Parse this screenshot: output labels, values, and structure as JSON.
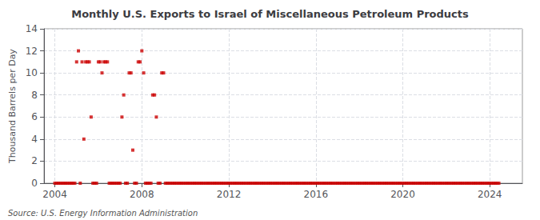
{
  "chart_data": {
    "type": "scatter",
    "title": "Monthly U.S. Exports to Israel of Miscellaneous Petroleum Products",
    "ylabel": "Thousand Barrels per Day",
    "annotations": [
      "Source: U.S. Energy Information Administration"
    ],
    "color": "#cc0000",
    "marker": "square",
    "grid": true,
    "xlim": [
      2003.5,
      2025.5
    ],
    "ylim": [
      0,
      14
    ],
    "xticks": [
      2004,
      2008,
      2012,
      2016,
      2020,
      2024
    ],
    "yticks": [
      0,
      2,
      4,
      6,
      8,
      10,
      12,
      14
    ],
    "x": [
      2004.0,
      2004.083,
      2004.167,
      2004.25,
      2004.333,
      2004.417,
      2004.5,
      2004.583,
      2004.667,
      2004.75,
      2004.833,
      2004.917,
      2005.0,
      2005.083,
      2005.167,
      2005.25,
      2005.333,
      2005.417,
      2005.5,
      2005.583,
      2005.667,
      2005.75,
      2005.833,
      2005.917,
      2006.0,
      2006.083,
      2006.167,
      2006.25,
      2006.333,
      2006.417,
      2006.5,
      2006.583,
      2006.667,
      2006.75,
      2006.833,
      2006.917,
      2007.0,
      2007.083,
      2007.167,
      2007.25,
      2007.333,
      2007.417,
      2007.5,
      2007.583,
      2007.667,
      2007.75,
      2007.833,
      2007.917,
      2008.0,
      2008.083,
      2008.167,
      2008.25,
      2008.333,
      2008.417,
      2008.5,
      2008.583,
      2008.667,
      2008.75,
      2008.833,
      2008.917,
      2009.0,
      2009.083,
      2009.167,
      2009.25,
      2009.333,
      2009.417,
      2009.5,
      2009.583,
      2009.667,
      2009.75,
      2009.833,
      2009.917,
      2010.0,
      2010.083,
      2010.167,
      2010.25,
      2010.333,
      2010.417,
      2010.5,
      2010.583,
      2010.667,
      2010.75,
      2010.833,
      2010.917,
      2011.0,
      2011.083,
      2011.167,
      2011.25,
      2011.333,
      2011.417,
      2011.5,
      2011.583,
      2011.667,
      2011.75,
      2011.833,
      2011.917,
      2012.0,
      2012.083,
      2012.167,
      2012.25,
      2012.333,
      2012.417,
      2012.5,
      2012.583,
      2012.667,
      2012.75,
      2012.833,
      2012.917,
      2013.0,
      2013.083,
      2013.167,
      2013.25,
      2013.333,
      2013.417,
      2013.5,
      2013.583,
      2013.667,
      2013.75,
      2013.833,
      2013.917,
      2014.0,
      2014.083,
      2014.167,
      2014.25,
      2014.333,
      2014.417,
      2014.5,
      2014.583,
      2014.667,
      2014.75,
      2014.833,
      2014.917,
      2015.0,
      2015.083,
      2015.167,
      2015.25,
      2015.333,
      2015.417,
      2015.5,
      2015.583,
      2015.667,
      2015.75,
      2015.833,
      2015.917,
      2016.0,
      2016.083,
      2016.167,
      2016.25,
      2016.333,
      2016.417,
      2016.5,
      2016.583,
      2016.667,
      2016.75,
      2016.833,
      2016.917,
      2017.0,
      2017.083,
      2017.167,
      2017.25,
      2017.333,
      2017.417,
      2017.5,
      2017.583,
      2017.667,
      2017.75,
      2017.833,
      2017.917,
      2018.0,
      2018.083,
      2018.167,
      2018.25,
      2018.333,
      2018.417,
      2018.5,
      2018.583,
      2018.667,
      2018.75,
      2018.833,
      2018.917,
      2019.0,
      2019.083,
      2019.167,
      2019.25,
      2019.333,
      2019.417,
      2019.5,
      2019.583,
      2019.667,
      2019.75,
      2019.833,
      2019.917,
      2020.0,
      2020.083,
      2020.167,
      2020.25,
      2020.333,
      2020.417,
      2020.5,
      2020.583,
      2020.667,
      2020.75,
      2020.833,
      2020.917,
      2021.0,
      2021.083,
      2021.167,
      2021.25,
      2021.333,
      2021.417,
      2021.5,
      2021.583,
      2021.667,
      2021.75,
      2021.833,
      2021.917,
      2022.0,
      2022.083,
      2022.167,
      2022.25,
      2022.333,
      2022.417,
      2022.5,
      2022.583,
      2022.667,
      2022.75,
      2022.833,
      2022.917,
      2023.0,
      2023.083,
      2023.167,
      2023.25,
      2023.333,
      2023.417,
      2023.5,
      2023.583,
      2023.667,
      2023.75,
      2023.833,
      2023.917,
      2024.0,
      2024.083,
      2024.167,
      2024.25,
      2024.333,
      2024.417
    ],
    "values": [
      0,
      0,
      0,
      0,
      0,
      0,
      0,
      0,
      0,
      0,
      0,
      0,
      11,
      12,
      0,
      11,
      4,
      11,
      11,
      11,
      6,
      0,
      0,
      0,
      11,
      11,
      10,
      11,
      11,
      11,
      0,
      0,
      0,
      0,
      0,
      0,
      0,
      6,
      8,
      0,
      0,
      10,
      10,
      3,
      0,
      0,
      11,
      11,
      12,
      10,
      0,
      0,
      0,
      0,
      8,
      8,
      6,
      0,
      0,
      10,
      10,
      0,
      0,
      0,
      0,
      0,
      0,
      0,
      0,
      0,
      0,
      0,
      0,
      0,
      0,
      0,
      0,
      0,
      0,
      0,
      0,
      0,
      0,
      0,
      0,
      0,
      0,
      0,
      0,
      0,
      0,
      0,
      0,
      0,
      0,
      0,
      0,
      0,
      0,
      0,
      0,
      0,
      0,
      0,
      0,
      0,
      0,
      0,
      0,
      0,
      0,
      0,
      0,
      0,
      0,
      0,
      0,
      0,
      0,
      0,
      0,
      0,
      0,
      0,
      0,
      0,
      0,
      0,
      0,
      0,
      0,
      0,
      0,
      0,
      0,
      0,
      0,
      0,
      0,
      0,
      0,
      0,
      0,
      0,
      0,
      0,
      0,
      0,
      0,
      0,
      0,
      0,
      0,
      0,
      0,
      0,
      0,
      0,
      0,
      0,
      0,
      0,
      0,
      0,
      0,
      0,
      0,
      0,
      0,
      0,
      0,
      0,
      0,
      0,
      0,
      0,
      0,
      0,
      0,
      0,
      0,
      0,
      0,
      0,
      0,
      0,
      0,
      0,
      0,
      0,
      0,
      0,
      0,
      0,
      0,
      0,
      0,
      0,
      0,
      0,
      0,
      0,
      0,
      0,
      0,
      0,
      0,
      0,
      0,
      0,
      0,
      0,
      0,
      0,
      0,
      0,
      0,
      0,
      0,
      0,
      0,
      0,
      0,
      0,
      0,
      0,
      0,
      0,
      0,
      0,
      0,
      0,
      0,
      0,
      0,
      0,
      0,
      0,
      0,
      0,
      0,
      0,
      0,
      0,
      0,
      0
    ]
  }
}
